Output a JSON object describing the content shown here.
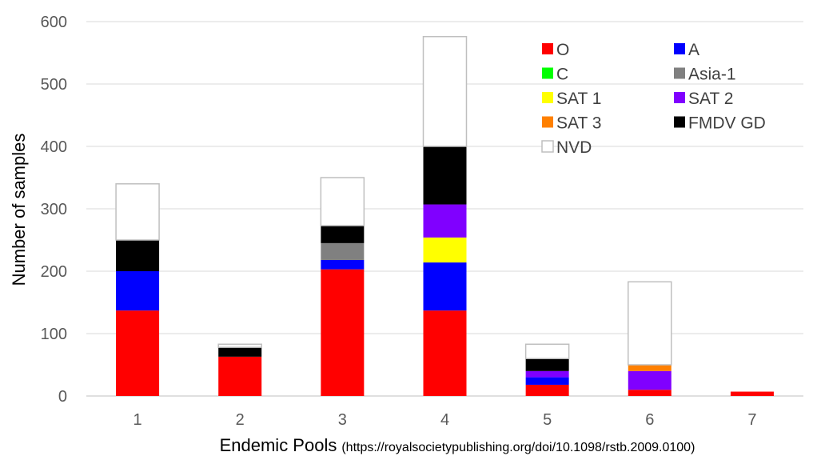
{
  "chart_data": {
    "type": "bar",
    "stacked": true,
    "categories": [
      "1",
      "2",
      "3",
      "4",
      "5",
      "6",
      "7"
    ],
    "xlabel": "Endemic Pools",
    "xlabel_note": "(https://royalsocietypublishing.org/doi/10.1098/rstb.2009.0100)",
    "ylabel": "Number of samples",
    "ylim": [
      0,
      600
    ],
    "yticks": [
      "0",
      "100",
      "200",
      "300",
      "400",
      "500",
      "600"
    ],
    "grid": true,
    "legend_position": "top-right",
    "series": [
      {
        "name": "O",
        "color": "#ff0000",
        "values": [
          137,
          63,
          203,
          137,
          18,
          10,
          7
        ]
      },
      {
        "name": "A",
        "color": "#0000ff",
        "values": [
          63,
          0,
          15,
          77,
          12,
          0,
          0
        ]
      },
      {
        "name": "C",
        "color": "#00ff00",
        "values": [
          0,
          0,
          0,
          0,
          0,
          0,
          0
        ]
      },
      {
        "name": "Asia-1",
        "color": "#808080",
        "values": [
          0,
          0,
          27,
          0,
          0,
          0,
          0
        ]
      },
      {
        "name": "SAT 1",
        "color": "#ffff00",
        "values": [
          0,
          0,
          0,
          40,
          0,
          0,
          0
        ]
      },
      {
        "name": "SAT 2",
        "color": "#8000ff",
        "values": [
          0,
          0,
          0,
          53,
          10,
          30,
          0
        ]
      },
      {
        "name": "SAT 3",
        "color": "#ff8000",
        "values": [
          0,
          0,
          0,
          0,
          0,
          10,
          0
        ]
      },
      {
        "name": "FMDV GD",
        "color": "#000000",
        "values": [
          50,
          15,
          28,
          93,
          20,
          0,
          0
        ]
      },
      {
        "name": "NVD",
        "color": "#ffffff",
        "stroke": "#bfbfbf",
        "values": [
          90,
          5,
          77,
          176,
          23,
          133,
          0
        ]
      }
    ]
  }
}
